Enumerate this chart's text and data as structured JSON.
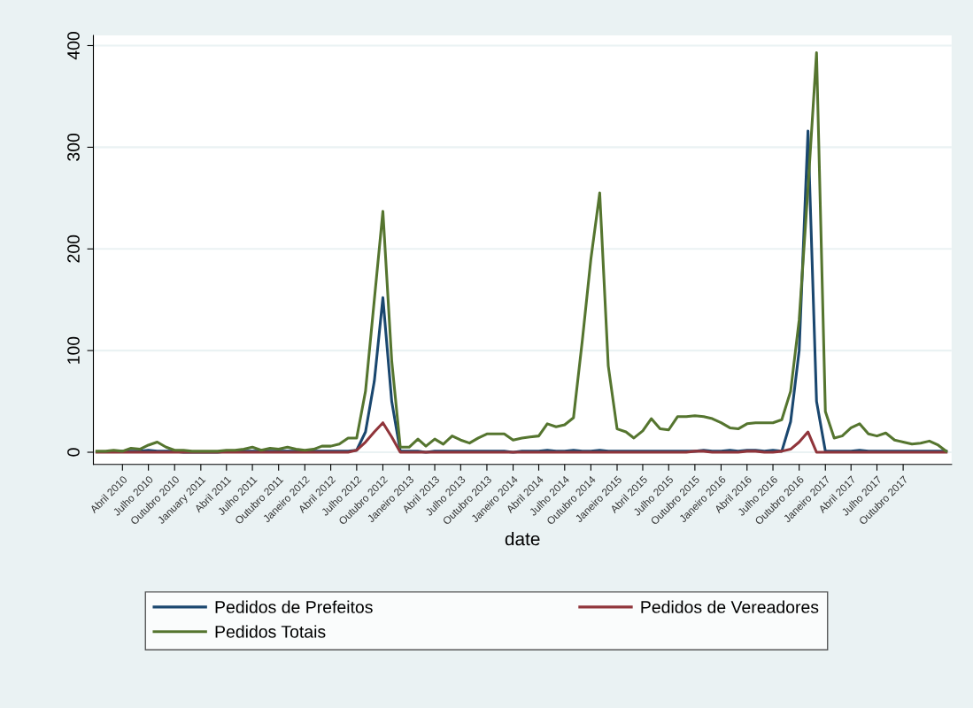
{
  "chart_data": {
    "type": "line",
    "xlabel": "date",
    "x": [
      "2010-01",
      "2010-02",
      "2010-03",
      "2010-04",
      "2010-05",
      "2010-06",
      "2010-07",
      "2010-08",
      "2010-09",
      "2010-10",
      "2010-11",
      "2010-12",
      "2011-01",
      "2011-02",
      "2011-03",
      "2011-04",
      "2011-05",
      "2011-06",
      "2011-07",
      "2011-08",
      "2011-09",
      "2011-10",
      "2011-11",
      "2011-12",
      "2012-01",
      "2012-02",
      "2012-03",
      "2012-04",
      "2012-05",
      "2012-06",
      "2012-07",
      "2012-08",
      "2012-09",
      "2012-10",
      "2012-11",
      "2012-12",
      "2013-01",
      "2013-02",
      "2013-03",
      "2013-04",
      "2013-05",
      "2013-06",
      "2013-07",
      "2013-08",
      "2013-09",
      "2013-10",
      "2013-11",
      "2013-12",
      "2014-01",
      "2014-02",
      "2014-03",
      "2014-04",
      "2014-05",
      "2014-06",
      "2014-07",
      "2014-08",
      "2014-09",
      "2014-10",
      "2014-11",
      "2014-12",
      "2015-01",
      "2015-02",
      "2015-03",
      "2015-04",
      "2015-05",
      "2015-06",
      "2015-07",
      "2015-08",
      "2015-09",
      "2015-10",
      "2015-11",
      "2015-12",
      "2016-01",
      "2016-02",
      "2016-03",
      "2016-04",
      "2016-05",
      "2016-06",
      "2016-07",
      "2016-08",
      "2016-09",
      "2016-10",
      "2016-11",
      "2016-12",
      "2017-01",
      "2017-02",
      "2017-03",
      "2017-04",
      "2017-05",
      "2017-06",
      "2017-07",
      "2017-08",
      "2017-09",
      "2017-10",
      "2017-11",
      "2017-12",
      "2018-01",
      "2018-02",
      "2018-03"
    ],
    "series": [
      {
        "name": "Pedidos de Prefeitos",
        "color": "#1a476f",
        "values": [
          null,
          null,
          1,
          1,
          1,
          1,
          2,
          1,
          1,
          1,
          0,
          0,
          0,
          0,
          0,
          1,
          1,
          1,
          1,
          1,
          1,
          1,
          1,
          1,
          1,
          1,
          1,
          1,
          1,
          1,
          2,
          20,
          70,
          152,
          50,
          1,
          1,
          1,
          0,
          1,
          1,
          1,
          1,
          1,
          1,
          1,
          1,
          1,
          0,
          1,
          1,
          1,
          2,
          1,
          1,
          2,
          1,
          1,
          2,
          1,
          1,
          1,
          1,
          1,
          1,
          1,
          1,
          1,
          1,
          1,
          2,
          1,
          1,
          2,
          1,
          2,
          2,
          1,
          2,
          1,
          30,
          100,
          316,
          50,
          1,
          1,
          1,
          1,
          2,
          1,
          1,
          1,
          1,
          1,
          1,
          1,
          1,
          1,
          1
        ]
      },
      {
        "name": "Pedidos de Vereadores",
        "color": "#90353b",
        "values": [
          0,
          0,
          0,
          0,
          0,
          0,
          0,
          0,
          0,
          0,
          0,
          0,
          0,
          0,
          0,
          0,
          0,
          0,
          0,
          0,
          0,
          0,
          0,
          0,
          0,
          0,
          0,
          0,
          0,
          0,
          2,
          10,
          20,
          29,
          15,
          0,
          0,
          0,
          0,
          0,
          0,
          0,
          0,
          0,
          0,
          0,
          0,
          0,
          0,
          0,
          0,
          0,
          0,
          0,
          0,
          0,
          0,
          0,
          0,
          0,
          0,
          0,
          0,
          0,
          0,
          0,
          0,
          0,
          0,
          1,
          1,
          0,
          0,
          0,
          0,
          1,
          1,
          0,
          0,
          1,
          3,
          10,
          20,
          0,
          0,
          0,
          0,
          0,
          0,
          0,
          0,
          0,
          0,
          0,
          0,
          0,
          0,
          0,
          0
        ]
      },
      {
        "name": "Pedidos Totais",
        "color": "#55752f",
        "values": [
          1,
          1,
          2,
          1,
          4,
          3,
          7,
          10,
          5,
          2,
          2,
          1,
          1,
          1,
          1,
          2,
          2,
          3,
          5,
          2,
          4,
          3,
          5,
          3,
          2,
          3,
          6,
          6,
          8,
          14,
          14,
          60,
          150,
          237,
          90,
          5,
          5,
          13,
          6,
          13,
          8,
          16,
          12,
          9,
          14,
          18,
          18,
          18,
          12,
          14,
          15,
          16,
          28,
          25,
          27,
          34,
          110,
          190,
          255,
          85,
          23,
          20,
          14,
          21,
          33,
          23,
          22,
          35,
          35,
          36,
          35,
          33,
          29,
          24,
          23,
          28,
          29,
          29,
          29,
          32,
          60,
          130,
          260,
          393,
          40,
          14,
          16,
          24,
          28,
          18,
          16,
          19,
          12,
          10,
          8,
          9,
          11,
          7,
          1
        ]
      }
    ],
    "xlim": [
      "2009-12-20",
      "2018-03-20"
    ],
    "xticks": [
      {
        "value": "2010-04",
        "label": "Abril 2010"
      },
      {
        "value": "2010-07",
        "label": "Julho 2010"
      },
      {
        "value": "2010-10",
        "label": "Outubro 2010"
      },
      {
        "value": "2011-01",
        "label": "January 2011"
      },
      {
        "value": "2011-04",
        "label": "Abril 2011"
      },
      {
        "value": "2011-07",
        "label": "Julho 2011"
      },
      {
        "value": "2011-10",
        "label": "Outubro 2011"
      },
      {
        "value": "2012-01",
        "label": "Janeiro 2012"
      },
      {
        "value": "2012-04",
        "label": "Abril 2012"
      },
      {
        "value": "2012-07",
        "label": "Julho 2012"
      },
      {
        "value": "2012-10",
        "label": "Outubro 2012"
      },
      {
        "value": "2013-01",
        "label": "Janeiro 2013"
      },
      {
        "value": "2013-04",
        "label": "Abril 2013"
      },
      {
        "value": "2013-07",
        "label": "Julho 2013"
      },
      {
        "value": "2013-10",
        "label": "Outubro 2013"
      },
      {
        "value": "2014-01",
        "label": "Janeiro 2014"
      },
      {
        "value": "2014-04",
        "label": "Abril 2014"
      },
      {
        "value": "2014-07",
        "label": "Julho 2014"
      },
      {
        "value": "2014-10",
        "label": "Outubro 2014"
      },
      {
        "value": "2015-01",
        "label": "Janeiro 2015"
      },
      {
        "value": "2015-04",
        "label": "Abril 2015"
      },
      {
        "value": "2015-07",
        "label": "Julho 2015"
      },
      {
        "value": "2015-10",
        "label": "Outubro 2015"
      },
      {
        "value": "2016-01",
        "label": "Janeiro 2016"
      },
      {
        "value": "2016-04",
        "label": "Abril 2016"
      },
      {
        "value": "2016-07",
        "label": "Julho 2016"
      },
      {
        "value": "2016-10",
        "label": "Outubro 2016"
      },
      {
        "value": "2017-01",
        "label": "Janeiro 2017"
      },
      {
        "value": "2017-04",
        "label": "Abril 2017"
      },
      {
        "value": "2017-07",
        "label": "Julho 2017"
      },
      {
        "value": "2017-10",
        "label": "Outubro 2017"
      }
    ],
    "ylim": [
      -12,
      410
    ],
    "yticks": [
      0,
      100,
      200,
      300,
      400
    ],
    "grid": "y",
    "legend": "bottom"
  }
}
